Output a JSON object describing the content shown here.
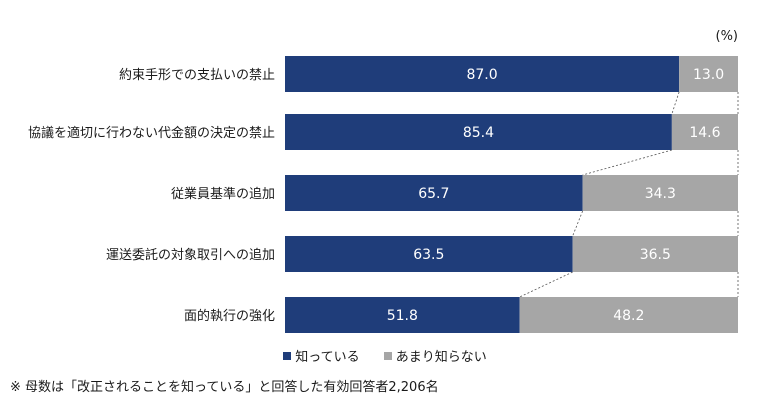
{
  "chart_data": {
    "type": "bar",
    "orientation": "horizontal",
    "stacked": true,
    "unit": "(%)",
    "categories": [
      "約束手形での支払いの禁止",
      "協議を適切に行わない代金額の決定の禁止",
      "従業員基準の追加",
      "運送委託の対象取引への追加",
      "面的執行の強化"
    ],
    "series": [
      {
        "name": "知っている",
        "values": [
          87.0,
          85.4,
          65.7,
          63.5,
          51.8
        ]
      },
      {
        "name": "あまり知らない",
        "values": [
          13.0,
          14.6,
          34.3,
          36.5,
          48.2
        ]
      }
    ],
    "value_labels": [
      [
        "87.0",
        "85.4",
        "65.7",
        "63.5",
        "51.8"
      ],
      [
        "13.0",
        "14.6",
        "34.3",
        "36.5",
        "48.2"
      ]
    ],
    "xlim": [
      0,
      100
    ],
    "grid": false,
    "legend_position": "bottom",
    "colors": [
      "#1f3d7a",
      "#a6a6a6"
    ],
    "connector_lines": "dotted"
  },
  "legend": {
    "items": [
      "知っている",
      "あまり知らない"
    ]
  },
  "footnote": "※ 母数は「改正されることを知っている」と回答した有効回答者2,206名"
}
